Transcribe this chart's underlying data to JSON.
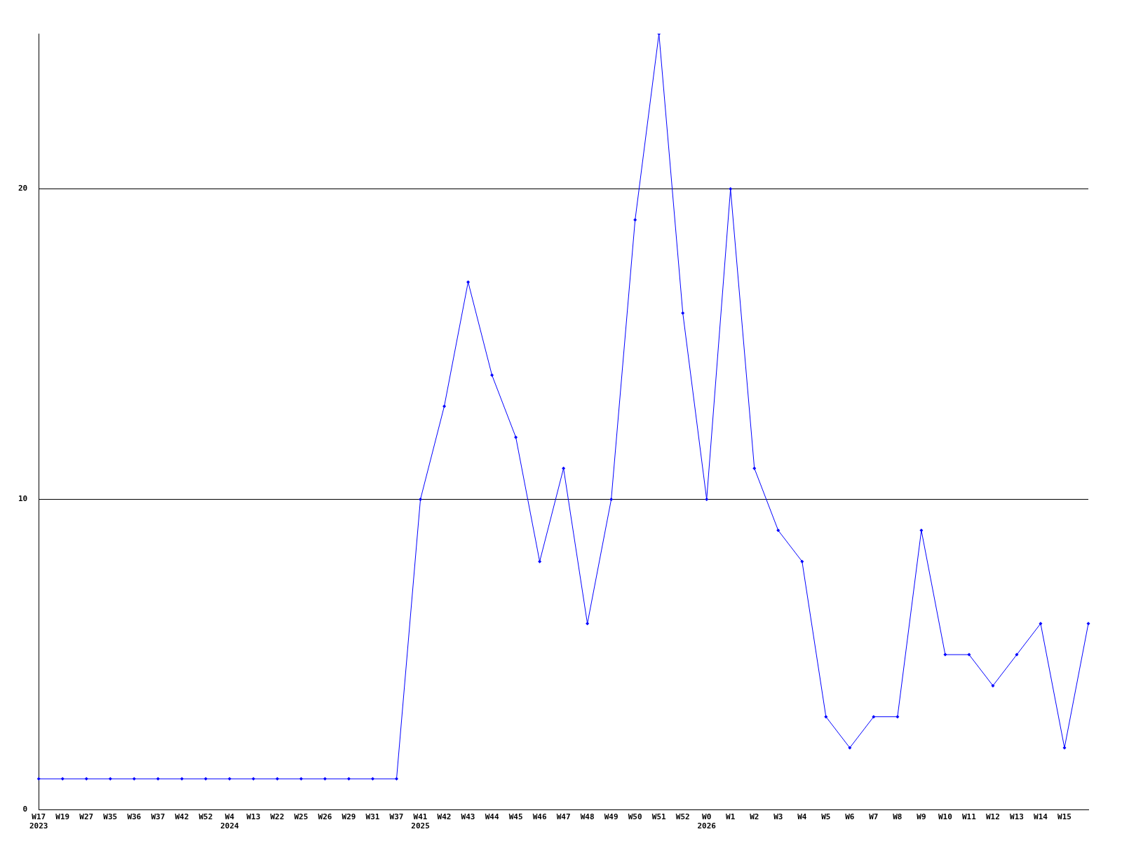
{
  "chart_data": {
    "type": "line",
    "categories": [
      "W17\n2023",
      "W19",
      "W27",
      "W35",
      "W36",
      "W37",
      "W42",
      "W52",
      "W4\n2024",
      "W13",
      "W22",
      "W25",
      "W26",
      "W29",
      "W31",
      "W37",
      "W41\n2025",
      "W42",
      "W43",
      "W44",
      "W45",
      "W46",
      "W47",
      "W48",
      "W49",
      "W50",
      "W51",
      "W52",
      "W0\n2026",
      "W1",
      "W2",
      "W3",
      "W4",
      "W5",
      "W6",
      "W7",
      "W8",
      "W9",
      "W10",
      "W11",
      "W12",
      "W13",
      "W14",
      "W15",
      null
    ],
    "series": [
      {
        "color": "#0000ff",
        "values": [
          1,
          1,
          1,
          1,
          1,
          1,
          1,
          1,
          1,
          1,
          1,
          1,
          1,
          1,
          1,
          1,
          10,
          13,
          17,
          14,
          12,
          8,
          11,
          6,
          10,
          19,
          25,
          16,
          10,
          20,
          11,
          9,
          8,
          3,
          2,
          3,
          3,
          9,
          5,
          5,
          4,
          5,
          6,
          2,
          6
        ]
      }
    ],
    "ylim": [
      0,
      25
    ],
    "yticks": [
      0,
      10,
      20
    ],
    "grid": "y",
    "legend": false,
    "marker": "diamond",
    "line_style": "solid"
  }
}
